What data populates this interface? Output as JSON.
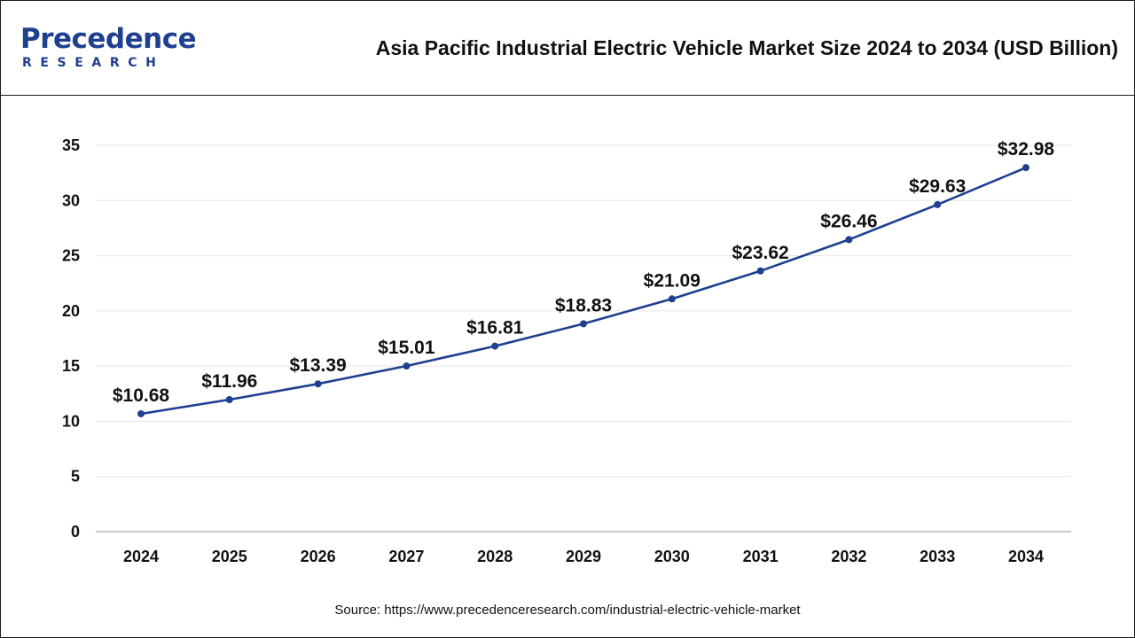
{
  "header": {
    "logo_word": "Precedence",
    "logo_sub": "RESEARCH",
    "title": "Asia Pacific Industrial Electric Vehicle Market Size 2024 to 2034 (USD Billion)"
  },
  "source": "Source: https://www.precedenceresearch.com/industrial-electric-vehicle-market",
  "chart_data": {
    "type": "line",
    "title": "Asia Pacific Industrial Electric Vehicle Market Size 2024 to 2034 (USD Billion)",
    "xlabel": "",
    "ylabel": "",
    "categories": [
      "2024",
      "2025",
      "2026",
      "2027",
      "2028",
      "2029",
      "2030",
      "2031",
      "2032",
      "2033",
      "2034"
    ],
    "values": [
      10.68,
      11.96,
      13.39,
      15.01,
      16.81,
      18.83,
      21.09,
      23.62,
      26.46,
      29.63,
      32.98
    ],
    "labels": [
      "$10.68",
      "$11.96",
      "$13.39",
      "$15.01",
      "$16.81",
      "$18.83",
      "$21.09",
      "$23.62",
      "$26.46",
      "$29.63",
      "$32.98"
    ],
    "ylim": [
      0,
      35
    ],
    "yticks": [
      "0",
      "5",
      "10",
      "15",
      "20",
      "25",
      "30",
      "35"
    ],
    "grid": true,
    "legend": "none",
    "line_color": "#1f3f8f"
  }
}
